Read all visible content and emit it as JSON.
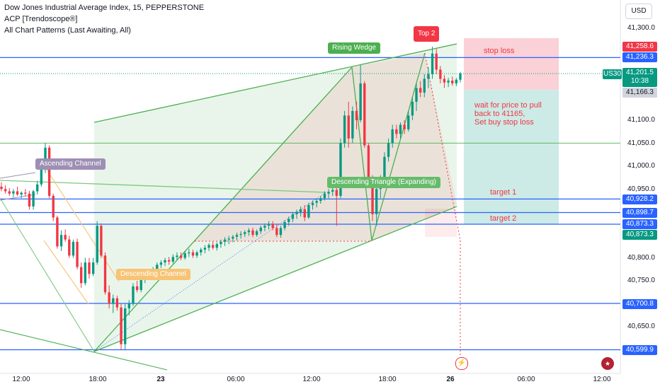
{
  "header": {
    "title": "Dow Jones Industrial Average Index, 15, PEPPERSTONE",
    "indicator_1": "ACP [Trendoscope®]",
    "indicator_2": "All Chart Patterns (Last Awaiting, All)"
  },
  "currency": "USD",
  "symbol_tag": "US30",
  "y_axis": {
    "ticks": [
      "41,300.0",
      "41,100.0",
      "41,050.0",
      "41,000.0",
      "40,950.0",
      "40,800.0",
      "40,750.0",
      "40,650.0"
    ],
    "range": [
      40580,
      41330
    ]
  },
  "x_axis": {
    "ticks": [
      "12:00",
      "18:00",
      "23",
      "06:00",
      "12:00",
      "18:00",
      "26",
      "06:00",
      "12:00"
    ]
  },
  "price_labels": {
    "stop": "41,258.6",
    "level_41236": "41,236.3",
    "current": "41,201.5",
    "countdown": "10:38",
    "entry": "41,166.3",
    "level_40928": "40,928.2",
    "level_40898": "40,898.7",
    "level_40873": "40,873.3",
    "level_40873b": "40,873.3",
    "level_40700": "40,700.8",
    "level_40599": "40,599.9"
  },
  "pattern_labels": {
    "rising_wedge": "Rising Wedge",
    "top2": "Top 2",
    "ascending_channel": "Ascending Channel",
    "descending_channel": "Descending Channel",
    "descending_triangle": "Descending Triangle (Expanding)"
  },
  "annotations": {
    "stop_loss": "stop loss",
    "note_line1": "wait for price to pull",
    "note_line2": "back to 41165,",
    "note_line3": "Set buy stop loss",
    "target1": "target 1",
    "target2": "target 2"
  },
  "colors": {
    "up": "#089981",
    "down": "#f23645",
    "level_line": "#2962ff",
    "pattern_green": "#4caf50",
    "stop_zone": "#f7c6cc",
    "target_zone": "#c7e8e3"
  },
  "chart_data": {
    "type": "candlestick",
    "title": "Dow Jones Industrial Average Index, 15, PEPPERSTONE",
    "ylim": [
      40580,
      41330
    ],
    "y_ticks": [
      41300,
      41100,
      41050,
      41000,
      40950,
      40800,
      40750,
      40650
    ],
    "horizontal_levels": [
      41236.3,
      41050,
      40928.2,
      40898.7,
      40873.3,
      40700.8,
      40599.9
    ],
    "trade_plan": {
      "entry": 41166.3,
      "stop_loss": 41258.6,
      "target_1": 40928.2,
      "target_2": 40873.3,
      "last_price": 41201.5
    },
    "candles": [
      {
        "o": 40955,
        "h": 40965,
        "l": 40945,
        "c": 40950
      },
      {
        "o": 40950,
        "h": 40958,
        "l": 40940,
        "c": 40945
      },
      {
        "o": 40945,
        "h": 40952,
        "l": 40935,
        "c": 40940
      },
      {
        "o": 40940,
        "h": 40950,
        "l": 40932,
        "c": 40945
      },
      {
        "o": 40945,
        "h": 40955,
        "l": 40935,
        "c": 40938
      },
      {
        "o": 40938,
        "h": 40945,
        "l": 40930,
        "c": 40942
      },
      {
        "o": 40942,
        "h": 40950,
        "l": 40935,
        "c": 40940
      },
      {
        "o": 40940,
        "h": 40946,
        "l": 40905,
        "c": 40912
      },
      {
        "o": 40912,
        "h": 40948,
        "l": 40905,
        "c": 40945
      },
      {
        "o": 40945,
        "h": 40968,
        "l": 40938,
        "c": 40960
      },
      {
        "o": 40960,
        "h": 41005,
        "l": 40955,
        "c": 40995
      },
      {
        "o": 40995,
        "h": 41050,
        "l": 40985,
        "c": 41040
      },
      {
        "o": 41040,
        "h": 41045,
        "l": 40930,
        "c": 40935
      },
      {
        "o": 40935,
        "h": 40940,
        "l": 40880,
        "c": 40888
      },
      {
        "o": 40888,
        "h": 40892,
        "l": 40820,
        "c": 40825
      },
      {
        "o": 40825,
        "h": 40860,
        "l": 40815,
        "c": 40850
      },
      {
        "o": 40850,
        "h": 40862,
        "l": 40835,
        "c": 40840
      },
      {
        "o": 40840,
        "h": 40848,
        "l": 40800,
        "c": 40805
      },
      {
        "o": 40805,
        "h": 40840,
        "l": 40800,
        "c": 40835
      },
      {
        "o": 40835,
        "h": 40842,
        "l": 40775,
        "c": 40780
      },
      {
        "o": 40780,
        "h": 40790,
        "l": 40735,
        "c": 40745
      },
      {
        "o": 40745,
        "h": 40800,
        "l": 40740,
        "c": 40790
      },
      {
        "o": 40790,
        "h": 40800,
        "l": 40755,
        "c": 40765
      },
      {
        "o": 40765,
        "h": 40800,
        "l": 40760,
        "c": 40790
      },
      {
        "o": 40790,
        "h": 40880,
        "l": 40785,
        "c": 40870
      },
      {
        "o": 40870,
        "h": 40875,
        "l": 40800,
        "c": 40805
      },
      {
        "o": 40805,
        "h": 40812,
        "l": 40720,
        "c": 40725
      },
      {
        "o": 40725,
        "h": 40740,
        "l": 40690,
        "c": 40700
      },
      {
        "o": 40700,
        "h": 40720,
        "l": 40680,
        "c": 40712
      },
      {
        "o": 40712,
        "h": 40718,
        "l": 40685,
        "c": 40692
      },
      {
        "o": 40692,
        "h": 40700,
        "l": 40600,
        "c": 40612
      },
      {
        "o": 40612,
        "h": 40700,
        "l": 40600,
        "c": 40690
      },
      {
        "o": 40690,
        "h": 40708,
        "l": 40675,
        "c": 40700
      },
      {
        "o": 40700,
        "h": 40745,
        "l": 40695,
        "c": 40738
      },
      {
        "o": 40738,
        "h": 40750,
        "l": 40725,
        "c": 40730
      },
      {
        "o": 40730,
        "h": 40762,
        "l": 40725,
        "c": 40755
      },
      {
        "o": 40755,
        "h": 40770,
        "l": 40745,
        "c": 40765
      },
      {
        "o": 40765,
        "h": 40775,
        "l": 40755,
        "c": 40760
      },
      {
        "o": 40760,
        "h": 40780,
        "l": 40758,
        "c": 40775
      },
      {
        "o": 40775,
        "h": 40790,
        "l": 40768,
        "c": 40785
      },
      {
        "o": 40785,
        "h": 40795,
        "l": 40778,
        "c": 40790
      },
      {
        "o": 40790,
        "h": 40800,
        "l": 40782,
        "c": 40795
      },
      {
        "o": 40795,
        "h": 40802,
        "l": 40785,
        "c": 40792
      },
      {
        "o": 40792,
        "h": 40808,
        "l": 40788,
        "c": 40802
      },
      {
        "o": 40802,
        "h": 40812,
        "l": 40795,
        "c": 40805
      },
      {
        "o": 40805,
        "h": 40812,
        "l": 40795,
        "c": 40800
      },
      {
        "o": 40800,
        "h": 40815,
        "l": 40796,
        "c": 40810
      },
      {
        "o": 40810,
        "h": 40820,
        "l": 40802,
        "c": 40812
      },
      {
        "o": 40812,
        "h": 40818,
        "l": 40800,
        "c": 40805
      },
      {
        "o": 40805,
        "h": 40816,
        "l": 40800,
        "c": 40812
      },
      {
        "o": 40812,
        "h": 40822,
        "l": 40805,
        "c": 40818
      },
      {
        "o": 40818,
        "h": 40828,
        "l": 40810,
        "c": 40822
      },
      {
        "o": 40822,
        "h": 40832,
        "l": 40815,
        "c": 40828
      },
      {
        "o": 40828,
        "h": 40835,
        "l": 40818,
        "c": 40822
      },
      {
        "o": 40822,
        "h": 40834,
        "l": 40816,
        "c": 40830
      },
      {
        "o": 40830,
        "h": 40840,
        "l": 40822,
        "c": 40835
      },
      {
        "o": 40835,
        "h": 40845,
        "l": 40826,
        "c": 40840
      },
      {
        "o": 40840,
        "h": 40848,
        "l": 40830,
        "c": 40842
      },
      {
        "o": 40842,
        "h": 40850,
        "l": 40834,
        "c": 40846
      },
      {
        "o": 40846,
        "h": 40855,
        "l": 40838,
        "c": 40850
      },
      {
        "o": 40850,
        "h": 40858,
        "l": 40842,
        "c": 40852
      },
      {
        "o": 40852,
        "h": 40860,
        "l": 40846,
        "c": 40856
      },
      {
        "o": 40856,
        "h": 40865,
        "l": 40848,
        "c": 40860
      },
      {
        "o": 40860,
        "h": 40866,
        "l": 40845,
        "c": 40850
      },
      {
        "o": 40850,
        "h": 40862,
        "l": 40846,
        "c": 40858
      },
      {
        "o": 40858,
        "h": 40870,
        "l": 40852,
        "c": 40866
      },
      {
        "o": 40866,
        "h": 40875,
        "l": 40858,
        "c": 40870
      },
      {
        "o": 40870,
        "h": 40880,
        "l": 40862,
        "c": 40874
      },
      {
        "o": 40874,
        "h": 40880,
        "l": 40860,
        "c": 40865
      },
      {
        "o": 40865,
        "h": 40872,
        "l": 40845,
        "c": 40850
      },
      {
        "o": 40850,
        "h": 40870,
        "l": 40844,
        "c": 40865
      },
      {
        "o": 40865,
        "h": 40882,
        "l": 40860,
        "c": 40878
      },
      {
        "o": 40878,
        "h": 40890,
        "l": 40870,
        "c": 40885
      },
      {
        "o": 40885,
        "h": 40900,
        "l": 40878,
        "c": 40895
      },
      {
        "o": 40895,
        "h": 40905,
        "l": 40885,
        "c": 40900
      },
      {
        "o": 40900,
        "h": 40912,
        "l": 40890,
        "c": 40906
      },
      {
        "o": 40906,
        "h": 40915,
        "l": 40880,
        "c": 40888
      },
      {
        "o": 40888,
        "h": 40920,
        "l": 40885,
        "c": 40915
      },
      {
        "o": 40915,
        "h": 40925,
        "l": 40905,
        "c": 40920
      },
      {
        "o": 40920,
        "h": 40930,
        "l": 40910,
        "c": 40924
      },
      {
        "o": 40924,
        "h": 40935,
        "l": 40918,
        "c": 40930
      },
      {
        "o": 40930,
        "h": 40945,
        "l": 40925,
        "c": 40940
      },
      {
        "o": 40940,
        "h": 40950,
        "l": 40930,
        "c": 40944
      },
      {
        "o": 40944,
        "h": 40955,
        "l": 40935,
        "c": 40948
      },
      {
        "o": 40948,
        "h": 40955,
        "l": 40870,
        "c": 40935
      },
      {
        "o": 40935,
        "h": 41060,
        "l": 40930,
        "c": 41050
      },
      {
        "o": 41050,
        "h": 41120,
        "l": 41040,
        "c": 41110
      },
      {
        "o": 41110,
        "h": 41140,
        "l": 41040,
        "c": 41060
      },
      {
        "o": 41060,
        "h": 41130,
        "l": 41050,
        "c": 41120
      },
      {
        "o": 41120,
        "h": 41140,
        "l": 41080,
        "c": 41100
      },
      {
        "o": 41100,
        "h": 41220,
        "l": 41095,
        "c": 41180
      },
      {
        "o": 41180,
        "h": 41185,
        "l": 41040,
        "c": 41045
      },
      {
        "o": 41045,
        "h": 41050,
        "l": 40960,
        "c": 40970
      },
      {
        "o": 40970,
        "h": 40980,
        "l": 40880,
        "c": 40895
      },
      {
        "o": 40895,
        "h": 40960,
        "l": 40870,
        "c": 40950
      },
      {
        "o": 40950,
        "h": 40980,
        "l": 40930,
        "c": 40970
      },
      {
        "o": 40970,
        "h": 41030,
        "l": 40960,
        "c": 41020
      },
      {
        "o": 41020,
        "h": 41060,
        "l": 41010,
        "c": 41050
      },
      {
        "o": 41050,
        "h": 41090,
        "l": 41040,
        "c": 41080
      },
      {
        "o": 41080,
        "h": 41090,
        "l": 41060,
        "c": 41070
      },
      {
        "o": 41070,
        "h": 41095,
        "l": 41060,
        "c": 41090
      },
      {
        "o": 41090,
        "h": 41100,
        "l": 41070,
        "c": 41080
      },
      {
        "o": 41080,
        "h": 41120,
        "l": 41075,
        "c": 41110
      },
      {
        "o": 41110,
        "h": 41150,
        "l": 41100,
        "c": 41140
      },
      {
        "o": 41140,
        "h": 41180,
        "l": 41120,
        "c": 41170
      },
      {
        "o": 41170,
        "h": 41185,
        "l": 41150,
        "c": 41160
      },
      {
        "o": 41160,
        "h": 41200,
        "l": 41150,
        "c": 41190
      },
      {
        "o": 41190,
        "h": 41215,
        "l": 41170,
        "c": 41200
      },
      {
        "o": 41200,
        "h": 41260,
        "l": 41190,
        "c": 41245
      },
      {
        "o": 41245,
        "h": 41255,
        "l": 41200,
        "c": 41210
      },
      {
        "o": 41210,
        "h": 41218,
        "l": 41180,
        "c": 41190
      },
      {
        "o": 41190,
        "h": 41198,
        "l": 41170,
        "c": 41182
      },
      {
        "o": 41182,
        "h": 41192,
        "l": 41172,
        "c": 41186
      },
      {
        "o": 41186,
        "h": 41195,
        "l": 41175,
        "c": 41180
      },
      {
        "o": 41180,
        "h": 41192,
        "l": 41174,
        "c": 41188
      },
      {
        "o": 41188,
        "h": 41205,
        "l": 41182,
        "c": 41201.5
      }
    ]
  }
}
